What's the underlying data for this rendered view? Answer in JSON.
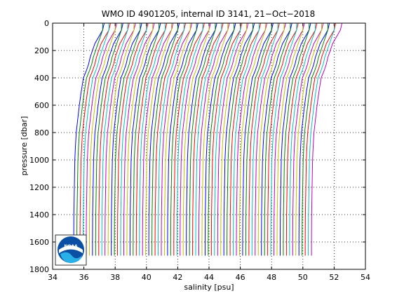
{
  "chart_data": {
    "type": "line",
    "title": "WMO ID 4901205, internal ID 3141, 21−Oct−2018",
    "xlabel": "salinity [psu]",
    "ylabel": "pressure [dbar]",
    "xlim": [
      34,
      54
    ],
    "ylim": [
      1800,
      0
    ],
    "y_reversed": true,
    "grid": true,
    "grid_style": "dotted",
    "x_ticks": [
      34,
      36,
      38,
      40,
      42,
      44,
      46,
      48,
      50,
      52,
      54
    ],
    "y_ticks": [
      0,
      200,
      400,
      600,
      800,
      1000,
      1200,
      1400,
      1600,
      1800
    ],
    "profiles": {
      "count": 77,
      "offset_between_profiles_psu": 0.2,
      "first_deep_salinity_psu": 35.35,
      "color_cycle": [
        "#0000ff",
        "#008000",
        "#ff0000",
        "#00bfbf",
        "#bf00bf",
        "#bfbf00"
      ],
      "shape_pressure_dbar": [
        0,
        50,
        100,
        150,
        200,
        250,
        300,
        350,
        400,
        500,
        600,
        700,
        800,
        900,
        1000,
        1200,
        1400,
        1600,
        1700
      ],
      "shape_salinity_offset_psu": [
        1.8,
        1.75,
        1.55,
        1.35,
        1.2,
        1.05,
        0.95,
        0.8,
        0.62,
        0.48,
        0.36,
        0.26,
        0.16,
        0.11,
        0.07,
        0.04,
        0.01,
        0.0,
        0.0
      ]
    }
  },
  "logo": {
    "text": "NOAA",
    "colors": {
      "circle": "#0a4fa3",
      "band": "#ffffff",
      "wave": "#2ab0e8"
    }
  }
}
